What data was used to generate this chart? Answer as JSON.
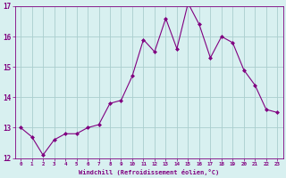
{
  "x": [
    0,
    1,
    2,
    3,
    4,
    5,
    6,
    7,
    8,
    9,
    10,
    11,
    12,
    13,
    14,
    15,
    16,
    17,
    18,
    19,
    20,
    21,
    22,
    23
  ],
  "y": [
    13.0,
    12.7,
    12.1,
    12.6,
    12.8,
    12.8,
    13.0,
    13.1,
    13.8,
    13.9,
    14.7,
    15.9,
    15.5,
    16.6,
    15.6,
    17.1,
    16.4,
    15.3,
    16.0,
    15.8,
    14.9,
    14.4,
    13.6,
    13.5
  ],
  "ylim": [
    12,
    17
  ],
  "yticks": [
    12,
    13,
    14,
    15,
    16,
    17
  ],
  "xlim": [
    -0.5,
    23.5
  ],
  "xticks": [
    0,
    1,
    2,
    3,
    4,
    5,
    6,
    7,
    8,
    9,
    10,
    11,
    12,
    13,
    14,
    15,
    16,
    17,
    18,
    19,
    20,
    21,
    22,
    23
  ],
  "xlabel": "Windchill (Refroidissement éolien,°C)",
  "line_color": "#800080",
  "marker": "D",
  "marker_size": 2,
  "bg_color": "#d8f0f0",
  "grid_color": "#aacece",
  "tick_color": "#800080",
  "label_color": "#800080"
}
